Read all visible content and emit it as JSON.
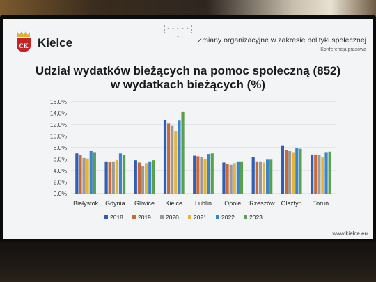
{
  "header": {
    "logo_label": "CK",
    "city_name": "Kielce",
    "dashes": "- - - - - -",
    "subtitle": "Zmiany organizacyjne w zakresie polityki społecznej",
    "note": "Konferencja prasowa"
  },
  "footer": {
    "url": "www.kielce.eu"
  },
  "colors": {
    "series": [
      "#2e5eb5",
      "#c8693a",
      "#9a9a9a",
      "#e6b43a",
      "#3a85c9",
      "#5aa050"
    ],
    "shield": "#c32226",
    "crown": "#e2b12a"
  },
  "chart_data": {
    "type": "bar",
    "title": "Udział wydatków bieżących na pomoc społeczną (852)",
    "subtitle": "w wydatkach bieżących (%)",
    "categories": [
      "Białystok",
      "Gdynia",
      "Gliwice",
      "Kielce",
      "Lublin",
      "Opole",
      "Rzeszów",
      "Olsztyn",
      "Toruń"
    ],
    "series": [
      {
        "name": "2018",
        "values": [
          7.0,
          5.6,
          5.8,
          12.8,
          6.6,
          5.4,
          6.3,
          8.4,
          6.8
        ]
      },
      {
        "name": "2019",
        "values": [
          6.7,
          5.5,
          5.4,
          12.2,
          6.5,
          5.2,
          5.6,
          7.6,
          6.8
        ]
      },
      {
        "name": "2020",
        "values": [
          6.2,
          5.6,
          4.8,
          11.8,
          6.3,
          5.0,
          5.6,
          7.4,
          6.7
        ]
      },
      {
        "name": "2021",
        "values": [
          6.1,
          5.8,
          5.3,
          10.9,
          6.0,
          5.3,
          5.4,
          7.1,
          6.3
        ]
      },
      {
        "name": "2022",
        "values": [
          7.4,
          7.0,
          5.6,
          12.7,
          6.9,
          5.6,
          5.9,
          7.9,
          7.1
        ]
      },
      {
        "name": "2023",
        "values": [
          7.1,
          6.7,
          5.8,
          14.2,
          7.0,
          5.6,
          5.9,
          7.8,
          7.3
        ]
      }
    ],
    "yticks": [
      "0,0%",
      "2,0%",
      "4,0%",
      "6,0%",
      "8,0%",
      "10,0%",
      "12,0%",
      "14,0%",
      "16,0%"
    ],
    "ylim": [
      0,
      16
    ],
    "grid": true,
    "legend": "bottom"
  }
}
